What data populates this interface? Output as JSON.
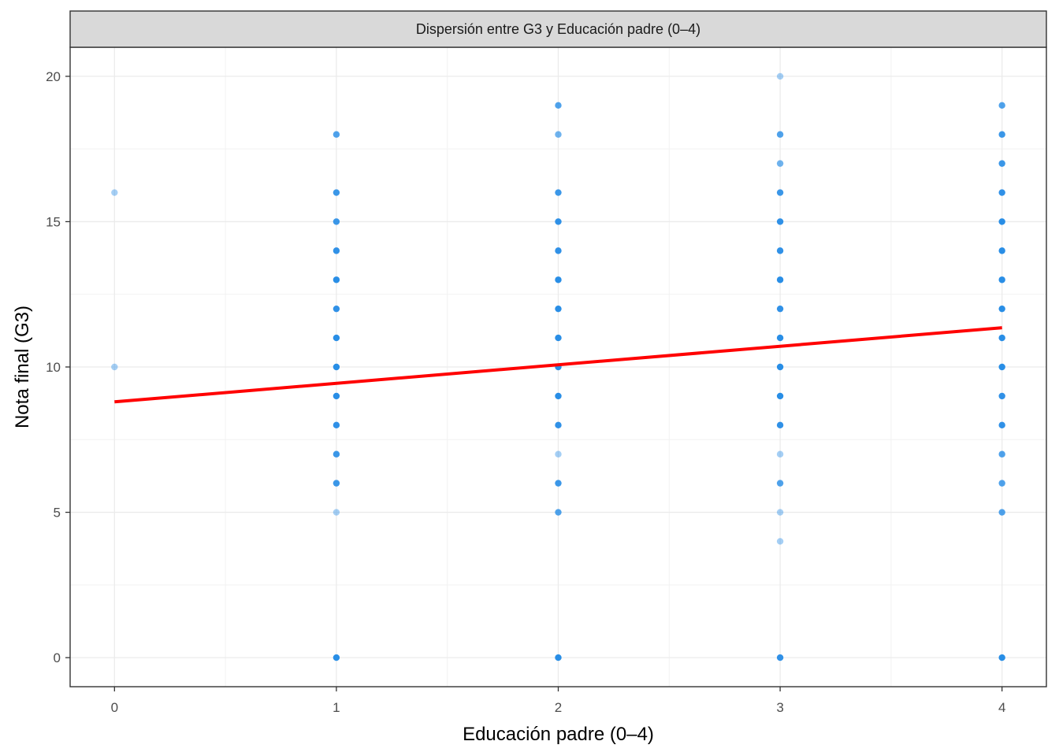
{
  "chart_data": {
    "type": "scatter",
    "facet_title": "Dispersión entre G3 y Educación padre (0–4)",
    "xlabel": "Educación padre (0–4)",
    "ylabel": "Nota final (G3)",
    "xlim": [
      -0.2,
      4.2
    ],
    "ylim": [
      -1,
      21
    ],
    "x_ticks": [
      0,
      1,
      2,
      3,
      4
    ],
    "y_ticks": [
      0,
      5,
      10,
      15,
      20
    ],
    "grid": true,
    "point_color": "#1e88e5",
    "line_color": "#ff0000",
    "series": [
      {
        "x": 0,
        "points": [
          {
            "y": 16,
            "n": 1
          },
          {
            "y": 10,
            "n": 1
          }
        ]
      },
      {
        "x": 1,
        "points": [
          {
            "y": 18,
            "n": 3
          },
          {
            "y": 16,
            "n": 4
          },
          {
            "y": 15,
            "n": 4
          },
          {
            "y": 14,
            "n": 5
          },
          {
            "y": 13,
            "n": 6
          },
          {
            "y": 12,
            "n": 5
          },
          {
            "y": 11,
            "n": 6
          },
          {
            "y": 10,
            "n": 8
          },
          {
            "y": 9,
            "n": 6
          },
          {
            "y": 8,
            "n": 5
          },
          {
            "y": 7,
            "n": 4
          },
          {
            "y": 6,
            "n": 4
          },
          {
            "y": 5,
            "n": 1
          },
          {
            "y": 0,
            "n": 6
          }
        ]
      },
      {
        "x": 2,
        "points": [
          {
            "y": 19,
            "n": 3
          },
          {
            "y": 18,
            "n": 2
          },
          {
            "y": 16,
            "n": 4
          },
          {
            "y": 15,
            "n": 5
          },
          {
            "y": 14,
            "n": 5
          },
          {
            "y": 13,
            "n": 6
          },
          {
            "y": 12,
            "n": 6
          },
          {
            "y": 11,
            "n": 7
          },
          {
            "y": 10,
            "n": 8
          },
          {
            "y": 9,
            "n": 7
          },
          {
            "y": 8,
            "n": 5
          },
          {
            "y": 7,
            "n": 1
          },
          {
            "y": 6,
            "n": 4
          },
          {
            "y": 5,
            "n": 3
          },
          {
            "y": 0,
            "n": 6
          }
        ]
      },
      {
        "x": 3,
        "points": [
          {
            "y": 20,
            "n": 1
          },
          {
            "y": 18,
            "n": 3
          },
          {
            "y": 17,
            "n": 2
          },
          {
            "y": 16,
            "n": 4
          },
          {
            "y": 15,
            "n": 5
          },
          {
            "y": 14,
            "n": 5
          },
          {
            "y": 13,
            "n": 6
          },
          {
            "y": 12,
            "n": 5
          },
          {
            "y": 11,
            "n": 6
          },
          {
            "y": 10,
            "n": 7
          },
          {
            "y": 9,
            "n": 6
          },
          {
            "y": 8,
            "n": 5
          },
          {
            "y": 7,
            "n": 1
          },
          {
            "y": 6,
            "n": 3
          },
          {
            "y": 5,
            "n": 1
          },
          {
            "y": 4,
            "n": 1
          },
          {
            "y": 0,
            "n": 5
          }
        ]
      },
      {
        "x": 4,
        "points": [
          {
            "y": 19,
            "n": 3
          },
          {
            "y": 18,
            "n": 4
          },
          {
            "y": 17,
            "n": 4
          },
          {
            "y": 16,
            "n": 5
          },
          {
            "y": 15,
            "n": 6
          },
          {
            "y": 14,
            "n": 6
          },
          {
            "y": 13,
            "n": 6
          },
          {
            "y": 12,
            "n": 6
          },
          {
            "y": 11,
            "n": 6
          },
          {
            "y": 10,
            "n": 7
          },
          {
            "y": 9,
            "n": 5
          },
          {
            "y": 8,
            "n": 5
          },
          {
            "y": 7,
            "n": 3
          },
          {
            "y": 6,
            "n": 3
          },
          {
            "y": 5,
            "n": 3
          },
          {
            "y": 0,
            "n": 6
          }
        ]
      }
    ],
    "regression": {
      "x": [
        0,
        4
      ],
      "y": [
        8.8,
        11.35
      ]
    }
  }
}
